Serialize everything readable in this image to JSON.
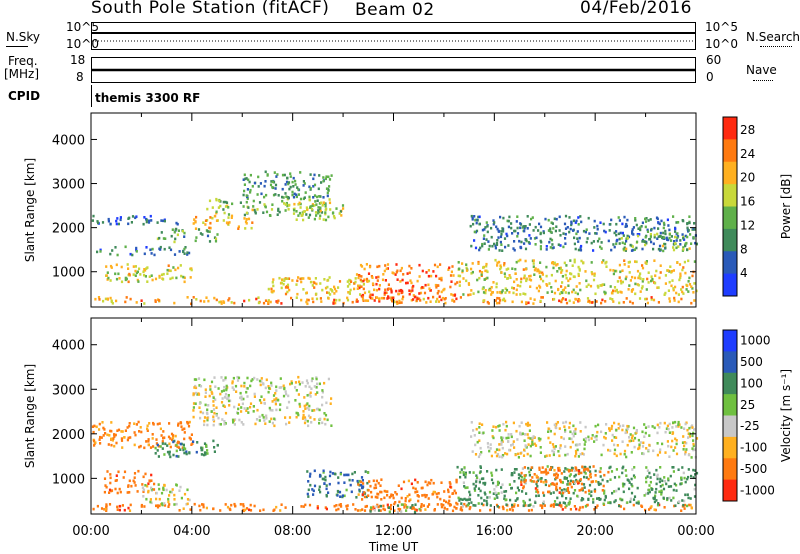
{
  "header": {
    "station": "South Pole Station (fitACF)",
    "beam": "Beam 02",
    "date": "04/Feb/2016"
  },
  "aux": {
    "nsky_label": "N.Sky",
    "nsky_ticks": [
      "10^5",
      "10^0"
    ],
    "nsearch_label": "N.Search",
    "nsearch_ticks": [
      "10^5",
      "10^0"
    ],
    "freq_label_1": "Freq.",
    "freq_label_2": "[MHz]",
    "freq_ticks": [
      "18",
      "8"
    ],
    "nave_label": "Nave",
    "nave_ticks": [
      "60",
      "0"
    ],
    "cpid_label": "CPID",
    "cpid_value": "themis 3300 RF"
  },
  "colors": {
    "power": [
      "#1f3dff",
      "#2a5ab8",
      "#3f8a5a",
      "#5fb04a",
      "#c8d83a",
      "#ffb020",
      "#ff7a10",
      "#ff2a10"
    ],
    "velocity": [
      "#1f3dff",
      "#2a5ab8",
      "#3f8a5a",
      "#6fc040",
      "#c8c8c8",
      "#ffb020",
      "#ff7a10",
      "#ff2a10"
    ]
  },
  "chart_data": [
    {
      "type": "heatmap",
      "name": "power",
      "ylabel": "Slant Range [km]",
      "yticks": [
        "1000",
        "2000",
        "3000",
        "4000"
      ],
      "ylim": [
        200,
        4600
      ],
      "colorbar_label": "Power [dB]",
      "colorbar_ticks": [
        "4",
        "8",
        "12",
        "16",
        "20",
        "24",
        "28"
      ],
      "colorbar_range": [
        0,
        30
      ],
      "regions": [
        {
          "t": [
            0.0,
            24.0
          ],
          "r": [
            300,
            450
          ],
          "v": 22
        },
        {
          "t": [
            0.0,
            3.5
          ],
          "r": [
            2100,
            2300
          ],
          "v": 6
        },
        {
          "t": [
            0.0,
            4.0
          ],
          "r": [
            1400,
            1600
          ],
          "v": 8
        },
        {
          "t": [
            0.5,
            4.0
          ],
          "r": [
            800,
            1200
          ],
          "v": 18
        },
        {
          "t": [
            2.5,
            5.0
          ],
          "r": [
            1700,
            2000
          ],
          "v": 12
        },
        {
          "t": [
            4.0,
            6.5
          ],
          "r": [
            2000,
            2300
          ],
          "v": 20
        },
        {
          "t": [
            4.5,
            9.5
          ],
          "r": [
            2300,
            2700
          ],
          "v": 14
        },
        {
          "t": [
            6.0,
            9.5
          ],
          "r": [
            2700,
            3300
          ],
          "v": 10
        },
        {
          "t": [
            8.0,
            10.0
          ],
          "r": [
            2200,
            2600
          ],
          "v": 16
        },
        {
          "t": [
            7.0,
            11.0
          ],
          "r": [
            500,
            900
          ],
          "v": 20
        },
        {
          "t": [
            10.5,
            14.5
          ],
          "r": [
            350,
            1200
          ],
          "v": 24
        },
        {
          "t": [
            11.5,
            13.0
          ],
          "r": [
            400,
            600
          ],
          "v": 28
        },
        {
          "t": [
            14.5,
            24.0
          ],
          "r": [
            500,
            1300
          ],
          "v": 18
        },
        {
          "t": [
            15.0,
            24.0
          ],
          "r": [
            1500,
            2300
          ],
          "v": 8
        },
        {
          "t": [
            21.0,
            24.0
          ],
          "r": [
            1500,
            1900
          ],
          "v": 14
        }
      ]
    },
    {
      "type": "heatmap",
      "name": "velocity",
      "ylabel": "Slant Range [km]",
      "yticks": [
        "1000",
        "2000",
        "3000",
        "4000"
      ],
      "ylim": [
        200,
        4600
      ],
      "xlabel": "Time UT",
      "xticks": [
        "00:00",
        "04:00",
        "08:00",
        "12:00",
        "16:00",
        "20:00",
        "00:00"
      ],
      "xlim": [
        0,
        24
      ],
      "colorbar_label": "Velocity [m s⁻¹]",
      "colorbar_ticks": [
        "1000",
        "500",
        "100",
        "25",
        "-25",
        "-100",
        "-500",
        "-1000"
      ],
      "regions": [
        {
          "t": [
            0.0,
            24.0
          ],
          "r": [
            300,
            450
          ],
          "v": -300
        },
        {
          "t": [
            0.0,
            4.0
          ],
          "r": [
            1700,
            2300
          ],
          "v": -200
        },
        {
          "t": [
            0.5,
            2.5
          ],
          "r": [
            700,
            1200
          ],
          "v": -300
        },
        {
          "t": [
            2.5,
            5.0
          ],
          "r": [
            1500,
            1900
          ],
          "v": 200
        },
        {
          "t": [
            4.0,
            9.5
          ],
          "r": [
            2200,
            3300
          ],
          "v": 0
        },
        {
          "t": [
            2.0,
            4.0
          ],
          "r": [
            400,
            900
          ],
          "v": 0
        },
        {
          "t": [
            8.5,
            11.0
          ],
          "r": [
            600,
            1200
          ],
          "v": 300
        },
        {
          "t": [
            10.5,
            14.5
          ],
          "r": [
            300,
            1000
          ],
          "v": -300
        },
        {
          "t": [
            11.0,
            13.0
          ],
          "r": [
            250,
            450
          ],
          "v": 80
        },
        {
          "t": [
            14.5,
            24.0
          ],
          "r": [
            400,
            1300
          ],
          "v": 150
        },
        {
          "t": [
            17.0,
            20.5
          ],
          "r": [
            700,
            1300
          ],
          "v": -300
        },
        {
          "t": [
            15.0,
            24.0
          ],
          "r": [
            1500,
            2300
          ],
          "v": 0
        }
      ]
    }
  ]
}
